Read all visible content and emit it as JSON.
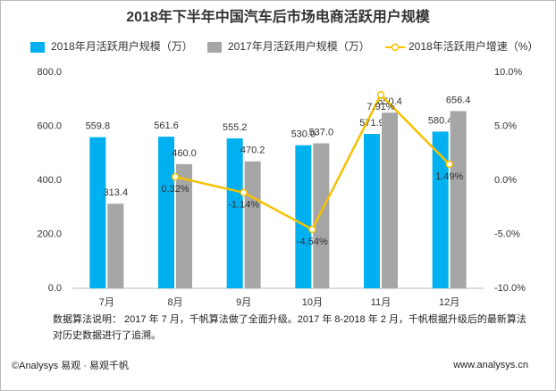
{
  "chart_data": {
    "type": "bar",
    "title": "2018年下半年中国汽车后市场电商活跃用户规模",
    "categories": [
      "7月",
      "8月",
      "9月",
      "10月",
      "11月",
      "12月"
    ],
    "series": [
      {
        "name": "2018年月活跃用户规模（万）",
        "type": "bar",
        "color": "#00b0f0",
        "values": [
          559.8,
          561.6,
          555.2,
          530.0,
          571.9,
          580.4
        ],
        "value_labels": [
          "559.8",
          "561.6",
          "555.2",
          "530.0",
          "571.9",
          "580.4"
        ]
      },
      {
        "name": "2017年月活跃用户规模（万）",
        "type": "bar",
        "color": "#a6a6a6",
        "values": [
          313.4,
          460.0,
          470.2,
          537.0,
          650.4,
          656.4
        ],
        "value_labels": [
          "313.4",
          "460.0",
          "470.2",
          "537.0",
          "650.4",
          "656.4"
        ]
      },
      {
        "name": "2018年活跃用户增速（%）",
        "type": "line",
        "axis": "y2",
        "color": "#f5c100",
        "values": [
          null,
          0.32,
          -1.14,
          -4.54,
          7.91,
          1.49
        ],
        "value_labels": [
          null,
          "0.32%",
          "-1.14%",
          "-4.54%",
          "7.91%",
          "1.49%"
        ]
      }
    ],
    "ylim": [
      0,
      800
    ],
    "yticks": [
      {
        "value": 0,
        "label": "0.0"
      },
      {
        "value": 200,
        "label": "200.0"
      },
      {
        "value": 400,
        "label": "400.0"
      },
      {
        "value": 600,
        "label": "600.0"
      },
      {
        "value": 800,
        "label": "800.0"
      }
    ],
    "y2lim": [
      -10,
      10
    ],
    "y2ticks": [
      {
        "value": -10,
        "label": "-10.0%"
      },
      {
        "value": -5,
        "label": "-5.0%"
      },
      {
        "value": 0,
        "label": "0.0%"
      },
      {
        "value": 5,
        "label": "5.0%"
      },
      {
        "value": 10,
        "label": "10.0%"
      }
    ],
    "legend": "top",
    "note": "数据算法说明： 2017 年 7 月，千帆算法做了全面升级。2017 年 8-2018 年 2 月，千帆根据升级后的最新算法对历史数据进行了追溯。",
    "source": "©Analysys 易观 · 易观千帆",
    "website": "www.analysys.cn"
  }
}
